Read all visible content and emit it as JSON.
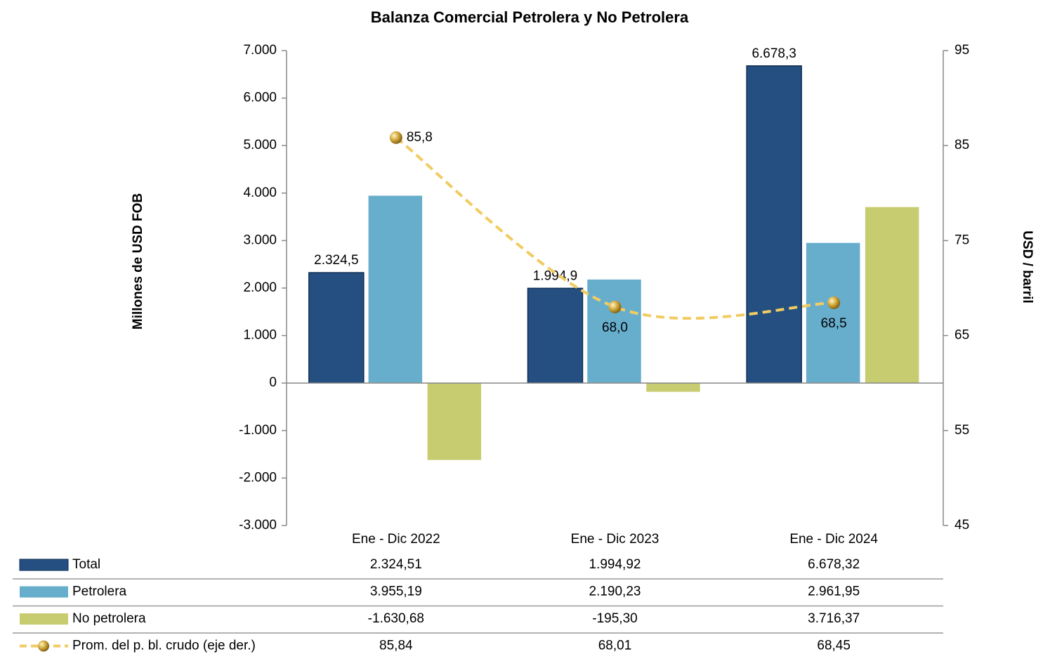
{
  "chart_data": {
    "type": "bar",
    "title": "Balanza Comercial Petrolera y No Petrolera",
    "y_label": "Millones de  USD FOB",
    "y2_label": "USD / barril",
    "categories": [
      "Ene - Dic 2022",
      "Ene - Dic 2023",
      "Ene - Dic 2024"
    ],
    "series": [
      {
        "name": "Total",
        "color": "#244f80",
        "values": [
          2324.51,
          1994.92,
          6678.32
        ],
        "value_labels": [
          "2.324,5",
          "1.994,9",
          "6.678,3"
        ],
        "table_values": [
          "2.324,51",
          "1.994,92",
          "6.678,32"
        ]
      },
      {
        "name": "Petrolera",
        "color": "#67aecd",
        "values": [
          3955.19,
          2190.23,
          2961.95
        ],
        "table_values": [
          "3.955,19",
          "2.190,23",
          "2.961,95"
        ]
      },
      {
        "name": "No petrolera",
        "color": "#c8cc70",
        "values": [
          -1630.68,
          -195.3,
          3716.37
        ],
        "table_values": [
          "-1.630,68",
          "-195,30",
          "3.716,37"
        ]
      },
      {
        "name": "Prom. del p. bl. crudo (eje der.)",
        "color": "#f1cc62",
        "type": "line",
        "axis": "y2",
        "values": [
          85.84,
          68.01,
          68.45
        ],
        "value_labels": [
          "85,8",
          "68,0",
          "68,5"
        ],
        "table_values": [
          "85,84",
          "68,01",
          "68,45"
        ]
      }
    ],
    "ylim": [
      -3000,
      7000
    ],
    "yticks": [
      {
        "value": -3000,
        "label": "-3.000"
      },
      {
        "value": -2000,
        "label": "-2.000"
      },
      {
        "value": -1000,
        "label": "-1.000"
      },
      0,
      {
        "value": 1000,
        "label": "1.000"
      },
      {
        "value": 2000,
        "label": "2.000"
      },
      {
        "value": 3000,
        "label": "3.000"
      },
      {
        "value": 4000,
        "label": "4.000"
      },
      {
        "value": 5000,
        "label": "5.000"
      },
      {
        "value": 6000,
        "label": "6.000"
      },
      {
        "value": 7000,
        "label": "7.000"
      }
    ],
    "y2lim": [
      45,
      95
    ],
    "y2ticks": [
      45,
      55,
      65,
      75,
      85,
      95
    ]
  }
}
